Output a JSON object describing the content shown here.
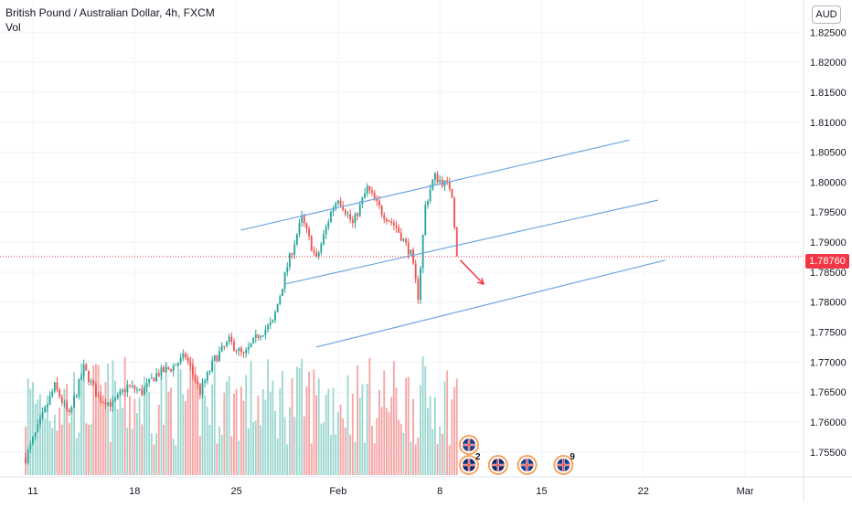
{
  "header": {
    "symbol_line": "British Pound / Australian Dollar, 4h, FXCM",
    "vol_label": "Vol"
  },
  "currency_button": "AUD",
  "last_price_tag": "1.78760",
  "colors": {
    "up": "#26a69a",
    "down": "#ef5350",
    "vol_up": "#9ed7d0",
    "vol_down": "#f6a5a5",
    "channel": "#6ea5e0",
    "last_price_line": "#f23645",
    "arrow": "#f23645"
  },
  "chart_data": {
    "type": "candlestick",
    "title": "British Pound / Australian Dollar, 4h, FXCM",
    "ylim": [
      1.753,
      1.8255
    ],
    "yticks": [
      "1.82500",
      "1.82000",
      "1.81500",
      "1.81000",
      "1.80500",
      "1.80000",
      "1.79500",
      "1.79000",
      "1.78500",
      "1.78000",
      "1.77500",
      "1.77000",
      "1.76500",
      "1.76000",
      "1.75500"
    ],
    "xticks": [
      "11",
      "18",
      "25",
      "Feb",
      "8",
      "15",
      "22",
      "Mar"
    ],
    "last_price": 1.7876,
    "grid": true,
    "price_path_days": [
      [
        10.5,
        1.754
      ],
      [
        11.5,
        1.76
      ],
      [
        12.5,
        1.766
      ],
      [
        13.5,
        1.761
      ],
      [
        14.5,
        1.769
      ],
      [
        15.5,
        1.764
      ],
      [
        16.5,
        1.763
      ],
      [
        17.5,
        1.766
      ],
      [
        18.5,
        1.765
      ],
      [
        19.5,
        1.768
      ],
      [
        20.5,
        1.769
      ],
      [
        21.5,
        1.771
      ],
      [
        22.5,
        1.765
      ],
      [
        23.5,
        1.7705
      ],
      [
        24.5,
        1.7735
      ],
      [
        25.5,
        1.771
      ],
      [
        26.5,
        1.7745
      ],
      [
        27.5,
        1.7765
      ],
      [
        28.5,
        1.786
      ],
      [
        29.5,
        1.794
      ],
      [
        30.5,
        1.787
      ],
      [
        31.5,
        1.795
      ],
      [
        32.0,
        1.7975
      ],
      [
        33.0,
        1.793
      ],
      [
        34.0,
        1.799
      ],
      [
        35.0,
        1.795
      ],
      [
        36.0,
        1.7925
      ],
      [
        37.0,
        1.788
      ],
      [
        37.5,
        1.781
      ],
      [
        38.0,
        1.796
      ],
      [
        38.6,
        1.801
      ],
      [
        39.2,
        1.8
      ],
      [
        39.8,
        1.799
      ],
      [
        40.1,
        1.79
      ],
      [
        40.3,
        1.7876
      ]
    ],
    "channel_lines": [
      {
        "start": [
          25.3,
          1.792
        ],
        "end": [
          52.0,
          1.807
        ]
      },
      {
        "start": [
          28.3,
          1.783
        ],
        "end": [
          54.0,
          1.797
        ]
      },
      {
        "start": [
          30.5,
          1.7725
        ],
        "end": [
          54.5,
          1.787
        ]
      }
    ],
    "projection_arrow": {
      "start": [
        40.4,
        1.787
      ],
      "end": [
        42.0,
        1.783
      ]
    },
    "volume_ylim": [
      0,
      1
    ],
    "events": [
      {
        "day": 41.0,
        "row": 1,
        "flag": "GB"
      },
      {
        "day": 41.0,
        "row": 2,
        "flag": "AU",
        "label": "2"
      },
      {
        "day": 43.0,
        "row": 2,
        "flag": "AU"
      },
      {
        "day": 45.0,
        "row": 2,
        "flag": "GB"
      },
      {
        "day": 47.5,
        "row": 2,
        "flag": "GB",
        "label": "9"
      }
    ]
  }
}
